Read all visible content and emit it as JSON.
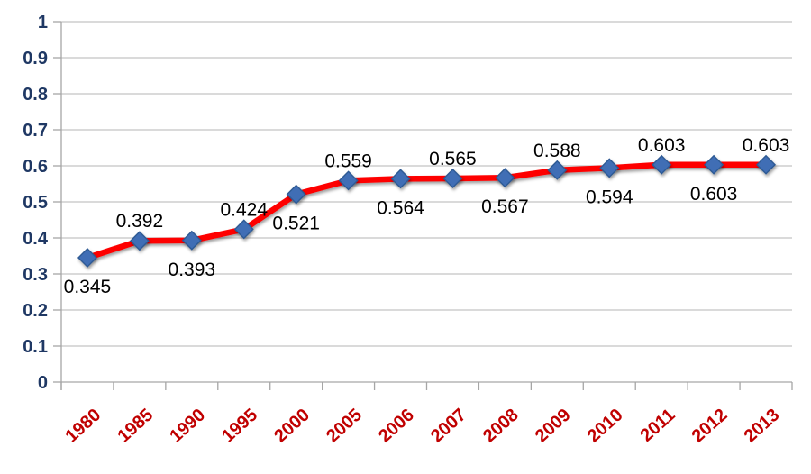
{
  "chart_data": {
    "type": "line",
    "title": "",
    "categories": [
      "1980",
      "1985",
      "1990",
      "1995",
      "2000",
      "2005",
      "2006",
      "2007",
      "2008",
      "2009",
      "2010",
      "2011",
      "2012",
      "2013"
    ],
    "series": [
      {
        "name": "series-1",
        "values": [
          0.345,
          0.392,
          0.393,
          0.424,
          0.521,
          0.559,
          0.564,
          0.565,
          0.567,
          0.588,
          0.594,
          0.603,
          0.603,
          0.603
        ],
        "data_labels": [
          "0.345",
          "0.392",
          "0.393",
          "0.424",
          "0.521",
          "0.559",
          "0.564",
          "0.565",
          "0.567",
          "0.588",
          "0.594",
          "0.603",
          "0.603",
          "0.603"
        ],
        "label_positions": [
          "below",
          "above",
          "below",
          "above",
          "below",
          "above",
          "below",
          "above",
          "below",
          "above",
          "below",
          "above",
          "below",
          "above"
        ]
      }
    ],
    "xlabel": "",
    "ylabel": "",
    "ylim": [
      0,
      1
    ],
    "ytick_labels": [
      "0",
      "0.1",
      "0.2",
      "0.3",
      "0.4",
      "0.5",
      "0.6",
      "0.7",
      "0.8",
      "0.9",
      "1"
    ],
    "grid": true,
    "legend_position": "none",
    "x_label_rotation_deg": -42,
    "colors": {
      "line": "#FE0000",
      "marker_fill": "#3F6EB5",
      "marker_border": "#2E5A94",
      "ytick_text": "#1F3864",
      "xtick_text": "#C00000",
      "data_label_text": "#000000",
      "gridline": "#C3C3C3",
      "axis": "#A6A6A6",
      "background": "#FFFFFF"
    }
  }
}
